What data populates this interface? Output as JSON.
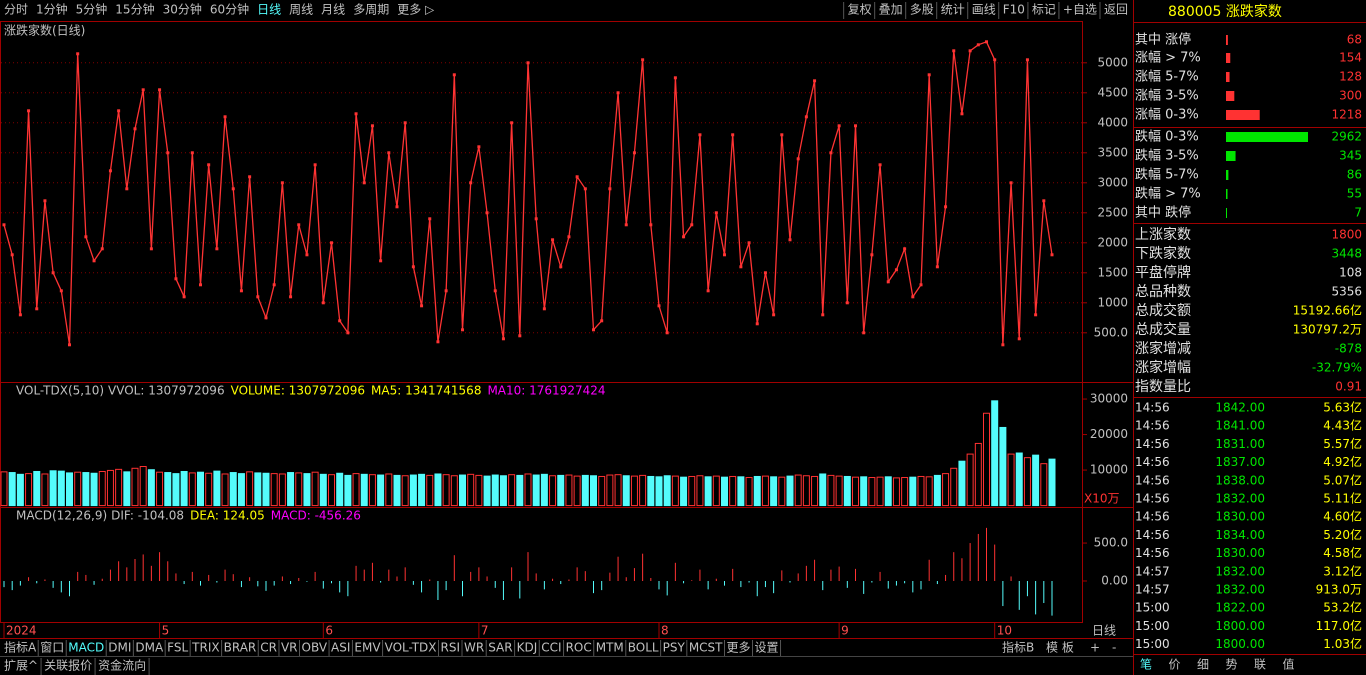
{
  "toolbar": {
    "periods": [
      "分时",
      "1分钟",
      "5分钟",
      "15分钟",
      "30分钟",
      "60分钟",
      "日线",
      "周线",
      "月线",
      "多周期",
      "更多 ▷"
    ],
    "active": "日线",
    "actions": [
      "复权",
      "叠加",
      "多股",
      "统计",
      "画线",
      "F10",
      "标记",
      "+自选",
      "返回"
    ]
  },
  "chart_data": [
    {
      "type": "line",
      "title": "涨跌家数(日线)",
      "color": "#ff3333",
      "ylim": [
        -320,
        5680
      ],
      "yticks": [
        {
          "value": 500,
          "label": "500.0"
        },
        1000,
        1500,
        2000,
        2500,
        3000,
        3500,
        4000,
        4500,
        5000
      ],
      "grid": true,
      "categories": [
        "2024",
        null,
        null,
        null,
        null,
        null,
        null,
        null,
        null,
        null,
        null,
        null,
        null,
        null,
        null,
        null,
        null,
        null,
        null,
        "5",
        null,
        null,
        null,
        null,
        null,
        null,
        null,
        null,
        null,
        null,
        null,
        null,
        null,
        null,
        null,
        null,
        null,
        null,
        null,
        "6",
        null,
        null,
        null,
        null,
        null,
        null,
        null,
        null,
        null,
        null,
        null,
        null,
        null,
        null,
        null,
        null,
        null,
        null,
        "7",
        null,
        null,
        null,
        null,
        null,
        null,
        null,
        null,
        null,
        null,
        null,
        null,
        null,
        null,
        null,
        null,
        null,
        null,
        null,
        null,
        null,
        "8",
        null,
        null,
        null,
        null,
        null,
        null,
        null,
        null,
        null,
        null,
        null,
        null,
        null,
        null,
        null,
        null,
        null,
        null,
        null,
        null,
        null,
        "9",
        null,
        null,
        null,
        null,
        null,
        null,
        null,
        null,
        null,
        null,
        null,
        null,
        null,
        null,
        null,
        null,
        null,
        null,
        "10",
        null,
        null,
        null,
        null,
        null,
        null,
        null
      ],
      "period": "日线",
      "values": [
        2300,
        1800,
        800,
        4200,
        900,
        2700,
        1500,
        1200,
        300,
        5150,
        2100,
        1700,
        1900,
        3200,
        4200,
        2900,
        3900,
        4550,
        1900,
        4550,
        3500,
        1400,
        1100,
        3500,
        1300,
        3300,
        1900,
        4100,
        2900,
        1200,
        3100,
        1100,
        750,
        1300,
        3000,
        1100,
        2300,
        1800,
        3300,
        1000,
        2000,
        700,
        500,
        4150,
        3000,
        3950,
        1700,
        3500,
        2600,
        4000,
        1600,
        950,
        2400,
        350,
        1200,
        4800,
        550,
        3000,
        3600,
        2500,
        1200,
        400,
        4000,
        450,
        5000,
        2400,
        900,
        2050,
        1600,
        2100,
        3100,
        2900,
        550,
        700,
        2900,
        4500,
        2300,
        3500,
        5050,
        2300,
        950,
        500,
        4750,
        2100,
        2300,
        3800,
        1200,
        2500,
        1800,
        3800,
        1600,
        2000,
        650,
        1500,
        800,
        3800,
        2050,
        3400,
        4100,
        4700,
        800,
        3500,
        3950,
        1000,
        3950,
        500,
        1800,
        3300,
        1350,
        1550,
        1900,
        1100,
        1300,
        4800,
        1600,
        2600,
        5200,
        4150,
        5200,
        5300,
        5350,
        5050,
        300,
        3000,
        400,
        5050,
        800,
        2700,
        1800
      ]
    },
    {
      "type": "bar",
      "title": "VOL-TDX(5,10)",
      "legend": [
        {
          "text": "VVOL: 1307972096",
          "color": "#c0c0c0"
        },
        {
          "text": "VOLUME: 1307972096",
          "color": "#ffff00"
        },
        {
          "text": "MA5: 1341741568",
          "color": "#ffff00"
        },
        {
          "text": "MA10: 1761927424",
          "color": "#ff00ff"
        }
      ],
      "unit": "X10万",
      "up_color": "#ff3232",
      "down_color": "#54fcfc",
      "ylim": [
        -400,
        34800
      ],
      "yticks": [
        10000,
        20000,
        30000
      ],
      "values": [
        9500,
        9300,
        8800,
        9000,
        9600,
        8900,
        9800,
        9700,
        9200,
        9400,
        9300,
        9100,
        9600,
        9900,
        10200,
        9500,
        10500,
        11000,
        10100,
        9400,
        9300,
        9000,
        9600,
        9200,
        9400,
        9100,
        9700,
        8900,
        9300,
        9000,
        9500,
        9200,
        9100,
        9000,
        8900,
        9300,
        9200,
        9000,
        9400,
        8800,
        8700,
        9100,
        8500,
        9000,
        8800,
        8700,
        8600,
        8900,
        8500,
        8400,
        8600,
        8800,
        8500,
        8900,
        8700,
        8400,
        8600,
        8800,
        8500,
        8300,
        8600,
        8400,
        8700,
        8500,
        8900,
        8600,
        8800,
        8400,
        8500,
        8600,
        8300,
        8500,
        8400,
        8200,
        8600,
        8700,
        8400,
        8300,
        8500,
        8200,
        8100,
        8400,
        8300,
        8000,
        8200,
        8400,
        8100,
        8300,
        8000,
        8200,
        8100,
        7900,
        8200,
        8300,
        8100,
        8000,
        8300,
        8600,
        8400,
        8200,
        8900,
        8500,
        8300,
        8200,
        8000,
        8100,
        7900,
        8000,
        8100,
        7800,
        7900,
        8000,
        8200,
        8100,
        8500,
        9000,
        10500,
        12500,
        14500,
        17500,
        26000,
        29500,
        22000,
        14500,
        14800,
        13500,
        14200,
        11800,
        13079.72
      ]
    },
    {
      "type": "bar",
      "title": "MACD(12,26,9)",
      "legend": [
        {
          "text": "DIF: -104.08",
          "color": "#c0c0c0"
        },
        {
          "text": "DEA: 124.05",
          "color": "#ffff00"
        },
        {
          "text": "MACD: -456.26",
          "color": "#ff00ff"
        }
      ],
      "up_color": "#ff3232",
      "down_color": "#54fcfc",
      "ylim": [
        -540,
        975
      ],
      "yticks": [
        {
          "value": 0,
          "label": "0.00"
        },
        {
          "value": 500,
          "label": "500.0"
        }
      ],
      "values": [
        -80,
        -120,
        -60,
        50,
        -30,
        20,
        -90,
        -150,
        -200,
        120,
        80,
        -50,
        30,
        150,
        260,
        180,
        290,
        350,
        200,
        380,
        260,
        100,
        -40,
        120,
        -60,
        80,
        -20,
        150,
        90,
        -80,
        50,
        -70,
        -130,
        -60,
        60,
        -40,
        40,
        -10,
        120,
        -100,
        -30,
        -150,
        -200,
        200,
        150,
        240,
        -20,
        150,
        60,
        180,
        -50,
        -150,
        20,
        -250,
        -120,
        340,
        -200,
        120,
        180,
        60,
        -90,
        -250,
        180,
        -230,
        380,
        100,
        -110,
        30,
        -40,
        20,
        180,
        130,
        -160,
        -120,
        110,
        320,
        50,
        170,
        360,
        40,
        -110,
        -190,
        240,
        -30,
        10,
        150,
        -110,
        30,
        -60,
        160,
        -80,
        -20,
        -200,
        -80,
        -160,
        140,
        -20,
        100,
        200,
        280,
        -120,
        150,
        190,
        -90,
        160,
        -170,
        -20,
        120,
        -100,
        -60,
        -30,
        -150,
        -110,
        280,
        -40,
        80,
        380,
        300,
        500,
        620,
        700,
        480,
        -330,
        60,
        -380,
        -200,
        -440,
        -290,
        -456.26
      ]
    }
  ],
  "tabs": {
    "indicators": [
      "指标A",
      "窗口",
      "MACD",
      "DMI",
      "DMA",
      "FSL",
      "TRIX",
      "BRAR",
      "CR",
      "VR",
      "OBV",
      "ASI",
      "EMV",
      "VOL-TDX",
      "RSI",
      "WR",
      "SAR",
      "KDJ",
      "CCI",
      "ROC",
      "MTM",
      "BOLL",
      "PSY",
      "MCST",
      "更多",
      "设置"
    ],
    "right": [
      "指标B",
      "模 板",
      "+",
      "-"
    ],
    "bottom": [
      "扩展^",
      "关联报价",
      "资金流向"
    ]
  },
  "panel": {
    "title": "880005 涨跌家数",
    "distribution": [
      {
        "label": "其中 涨停",
        "value": 68,
        "color": "#ff3232"
      },
      {
        "label": "涨幅 > 7%",
        "value": 154,
        "color": "#ff3232"
      },
      {
        "label": "涨幅 5-7%",
        "value": 128,
        "color": "#ff3232"
      },
      {
        "label": "涨幅 3-5%",
        "value": 300,
        "color": "#ff3232"
      },
      {
        "label": "涨幅 0-3%",
        "value": 1218,
        "color": "#ff3232"
      },
      {
        "label": "跌幅 0-3%",
        "value": 2962,
        "color": "#00e600"
      },
      {
        "label": "跌幅 3-5%",
        "value": 345,
        "color": "#00e600"
      },
      {
        "label": "跌幅 5-7%",
        "value": 86,
        "color": "#00e600"
      },
      {
        "label": "跌幅 > 7%",
        "value": 55,
        "color": "#00e600"
      },
      {
        "label": "其中 跌停",
        "value": 7,
        "color": "#00e600"
      }
    ],
    "stats": [
      {
        "label": "上涨家数",
        "value": "1800",
        "color": "#ff3232"
      },
      {
        "label": "下跌家数",
        "value": "3448",
        "color": "#00e600"
      },
      {
        "label": "平盘停牌",
        "value": "108",
        "color": "#e0e0e0"
      },
      {
        "label": "总品种数",
        "value": "5356",
        "color": "#e0e0e0"
      },
      {
        "label": "总成交额",
        "value": "15192.66亿",
        "color": "#ffff00"
      },
      {
        "label": "总成交量",
        "value": "130797.2万",
        "color": "#ffff00"
      },
      {
        "label": "涨家增减",
        "value": "-878",
        "color": "#00e600"
      },
      {
        "label": "涨家增幅",
        "value": "-32.79%",
        "color": "#00e600"
      },
      {
        "label": "指数量比",
        "value": "0.91",
        "color": "#ff3232"
      }
    ],
    "ticks": [
      [
        "14:56",
        "1842.00",
        "5.63亿"
      ],
      [
        "14:56",
        "1841.00",
        "4.43亿"
      ],
      [
        "14:56",
        "1831.00",
        "5.57亿"
      ],
      [
        "14:56",
        "1837.00",
        "4.92亿"
      ],
      [
        "14:56",
        "1838.00",
        "5.07亿"
      ],
      [
        "14:56",
        "1832.00",
        "5.11亿"
      ],
      [
        "14:56",
        "1830.00",
        "4.60亿"
      ],
      [
        "14:56",
        "1834.00",
        "5.20亿"
      ],
      [
        "14:56",
        "1830.00",
        "4.58亿"
      ],
      [
        "14:57",
        "1832.00",
        "3.12亿"
      ],
      [
        "14:57",
        "1832.00",
        "913.0万"
      ],
      [
        "15:00",
        "1822.00",
        "53.2亿"
      ],
      [
        "15:00",
        "1800.00",
        "117.0亿"
      ],
      [
        "15:00",
        "1800.00",
        "1.03亿"
      ]
    ],
    "tabs": [
      "笔",
      "价",
      "细",
      "势",
      "联",
      "值"
    ]
  }
}
